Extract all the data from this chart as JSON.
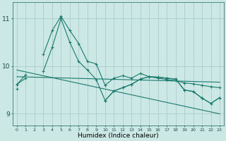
{
  "xlabel": "Humidex (Indice chaleur)",
  "bg_color": "#cce8e4",
  "grid_color": "#aacccc",
  "line_color": "#1a7a6e",
  "x": [
    0,
    1,
    2,
    3,
    4,
    5,
    6,
    7,
    8,
    9,
    10,
    11,
    12,
    13,
    14,
    15,
    16,
    17,
    18,
    19,
    20,
    21,
    22,
    23
  ],
  "series1": [
    9.62,
    9.82,
    null,
    10.25,
    10.75,
    11.05,
    10.75,
    10.48,
    10.1,
    10.05,
    9.6,
    9.75,
    9.8,
    9.75,
    9.85,
    9.78,
    9.75,
    9.72,
    9.7,
    9.65,
    9.63,
    9.6,
    9.57,
    9.55
  ],
  "series2": [
    9.52,
    null,
    null,
    null,
    null,
    null,
    null,
    null,
    null,
    null,
    9.28,
    9.48,
    9.55,
    9.62,
    9.73,
    9.78,
    9.77,
    9.75,
    9.73,
    9.5,
    9.47,
    9.33,
    9.22,
    9.34
  ],
  "series3": [
    9.62,
    9.75,
    null,
    9.9,
    10.4,
    11.0,
    10.5,
    10.1,
    9.92,
    9.72,
    9.28,
    9.48,
    9.55,
    9.62,
    9.73,
    9.78,
    9.77,
    9.75,
    9.73,
    9.5,
    9.47,
    9.33,
    9.22,
    9.34
  ],
  "trend1": [
    9.92,
    9.88,
    9.84,
    9.8,
    9.76,
    9.72,
    9.68,
    9.64,
    9.6,
    9.56,
    9.52,
    9.48,
    9.44,
    9.4,
    9.36,
    9.32,
    9.28,
    9.24,
    9.2,
    9.16,
    9.12,
    9.08,
    9.04,
    9.0
  ],
  "trend2": [
    9.78,
    9.775,
    9.77,
    9.765,
    9.76,
    9.755,
    9.75,
    9.745,
    9.74,
    9.735,
    9.73,
    9.725,
    9.72,
    9.715,
    9.71,
    9.705,
    9.7,
    9.695,
    9.69,
    9.685,
    9.68,
    9.675,
    9.67,
    9.665
  ],
  "ylim": [
    8.75,
    11.35
  ],
  "yticks": [
    9,
    10,
    11
  ],
  "xlim": [
    -0.5,
    23.5
  ],
  "xticks": [
    0,
    1,
    2,
    3,
    4,
    5,
    6,
    7,
    8,
    9,
    10,
    11,
    12,
    13,
    14,
    15,
    16,
    17,
    18,
    19,
    20,
    21,
    22,
    23
  ]
}
